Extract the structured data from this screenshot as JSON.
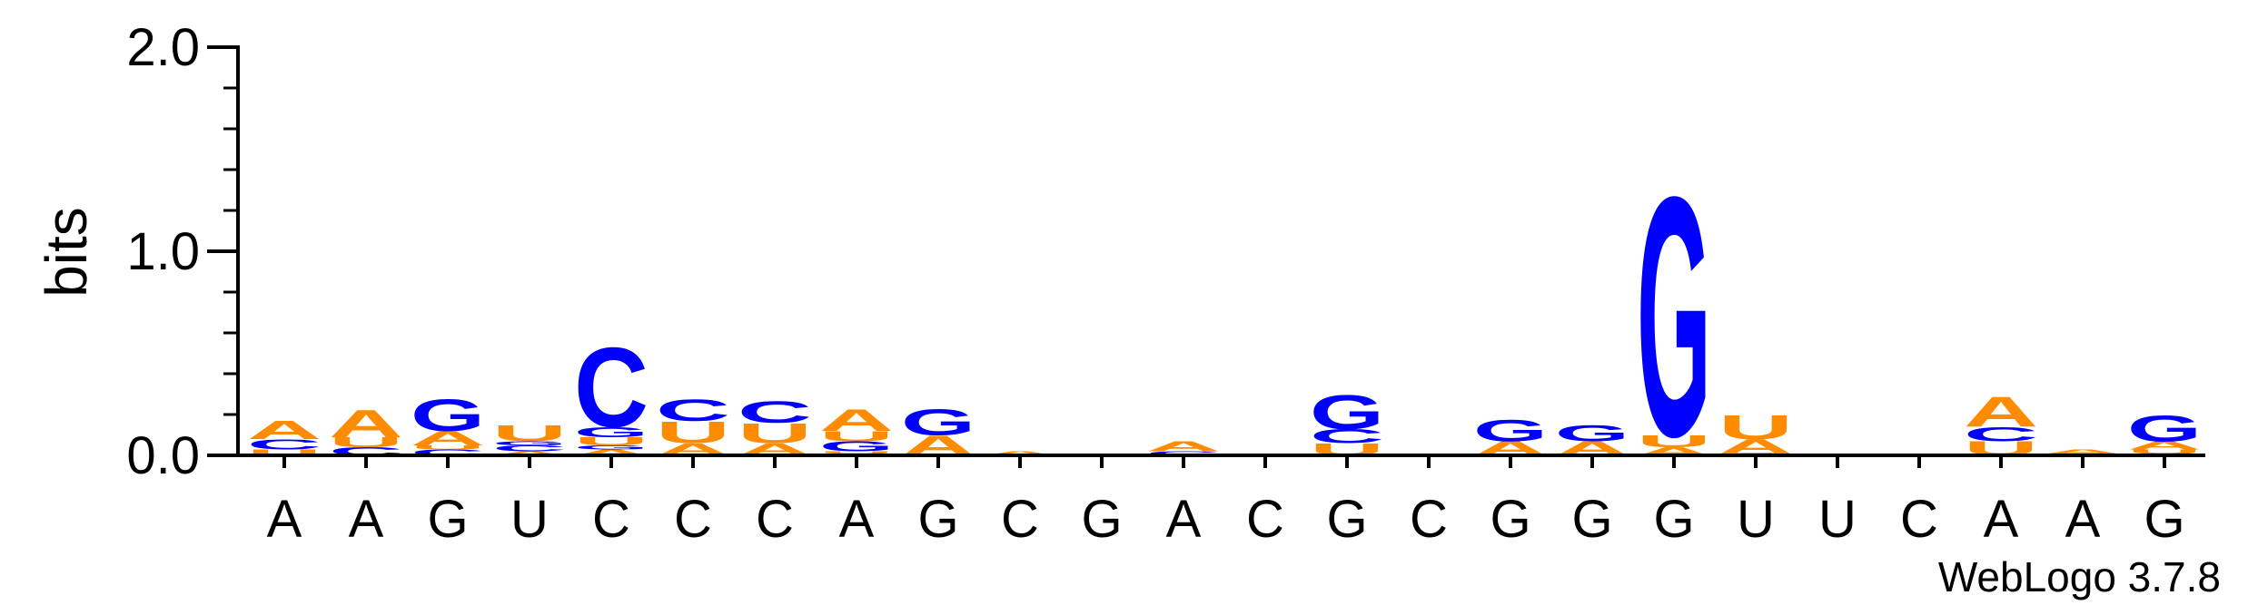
{
  "chart_data": {
    "type": "sequence-logo",
    "ylabel": "bits",
    "ylim": [
      0,
      2.0
    ],
    "yticks": [
      "0.0",
      "1.0",
      "2.0"
    ],
    "categories": [
      "A",
      "A",
      "G",
      "U",
      "C",
      "C",
      "C",
      "A",
      "G",
      "C",
      "G",
      "A",
      "C",
      "G",
      "C",
      "G",
      "G",
      "G",
      "U",
      "U",
      "C",
      "A",
      "A",
      "G"
    ],
    "colors": {
      "A": "#FF8C00",
      "U": "#FF8C00",
      "G": "#0000FF",
      "C": "#0000FF"
    },
    "stacks": [
      [
        {
          "letter": "U",
          "bits": 0.03
        },
        {
          "letter": "C",
          "bits": 0.05
        },
        {
          "letter": "A",
          "bits": 0.09
        }
      ],
      [
        {
          "letter": "C",
          "bits": 0.04
        },
        {
          "letter": "U",
          "bits": 0.05
        },
        {
          "letter": "A",
          "bits": 0.14
        }
      ],
      [
        {
          "letter": "C",
          "bits": 0.03
        },
        {
          "letter": "U",
          "bits": 0.02
        },
        {
          "letter": "A",
          "bits": 0.07
        },
        {
          "letter": "G",
          "bits": 0.16
        }
      ],
      [
        {
          "letter": "A",
          "bits": 0.02
        },
        {
          "letter": "C",
          "bits": 0.03
        },
        {
          "letter": "G",
          "bits": 0.02
        },
        {
          "letter": "U",
          "bits": 0.08
        }
      ],
      [
        {
          "letter": "A",
          "bits": 0.03
        },
        {
          "letter": "G",
          "bits": 0.02
        },
        {
          "letter": "U",
          "bits": 0.04
        },
        {
          "letter": "G",
          "bits": 0.05
        },
        {
          "letter": "C",
          "bits": 0.4
        }
      ],
      [
        {
          "letter": "A",
          "bits": 0.06
        },
        {
          "letter": "U",
          "bits": 0.11
        },
        {
          "letter": "C",
          "bits": 0.11
        }
      ],
      [
        {
          "letter": "A",
          "bits": 0.06
        },
        {
          "letter": "U",
          "bits": 0.1
        },
        {
          "letter": "C",
          "bits": 0.11
        }
      ],
      [
        {
          "letter": "C",
          "bits": 0.01
        },
        {
          "letter": "U",
          "bits": 0.01
        },
        {
          "letter": "G",
          "bits": 0.05
        },
        {
          "letter": "U",
          "bits": 0.05
        },
        {
          "letter": "A",
          "bits": 0.11
        }
      ],
      [
        {
          "letter": "A",
          "bits": 0.1
        },
        {
          "letter": "G",
          "bits": 0.13
        }
      ],
      [
        {
          "letter": "A",
          "bits": 0.02
        }
      ],
      [],
      [
        {
          "letter": "C",
          "bits": 0.02
        },
        {
          "letter": "A",
          "bits": 0.05
        }
      ],
      [],
      [
        {
          "letter": "U",
          "bits": 0.06
        },
        {
          "letter": "C",
          "bits": 0.07
        },
        {
          "letter": "G",
          "bits": 0.17
        }
      ],
      [],
      [
        {
          "letter": "A",
          "bits": 0.07
        },
        {
          "letter": "G",
          "bits": 0.11
        }
      ],
      [
        {
          "letter": "A",
          "bits": 0.07
        },
        {
          "letter": "G",
          "bits": 0.08
        }
      ],
      [
        {
          "letter": "A",
          "bits": 0.04
        },
        {
          "letter": "U",
          "bits": 0.06
        },
        {
          "letter": "G",
          "bits": 1.2
        }
      ],
      [
        {
          "letter": "C",
          "bits": 0.01
        },
        {
          "letter": "A",
          "bits": 0.07
        },
        {
          "letter": "U",
          "bits": 0.12
        }
      ],
      [],
      [],
      [
        {
          "letter": "U",
          "bits": 0.07
        },
        {
          "letter": "C",
          "bits": 0.07
        },
        {
          "letter": "A",
          "bits": 0.15
        }
      ],
      [
        {
          "letter": "C",
          "bits": 0.01
        },
        {
          "letter": "A",
          "bits": 0.02
        }
      ],
      [
        {
          "letter": "C",
          "bits": 0.01
        },
        {
          "letter": "U",
          "bits": 0.02
        },
        {
          "letter": "A",
          "bits": 0.04
        },
        {
          "letter": "G",
          "bits": 0.13
        }
      ]
    ]
  },
  "footer": {
    "credit": "WebLogo 3.7.8"
  }
}
